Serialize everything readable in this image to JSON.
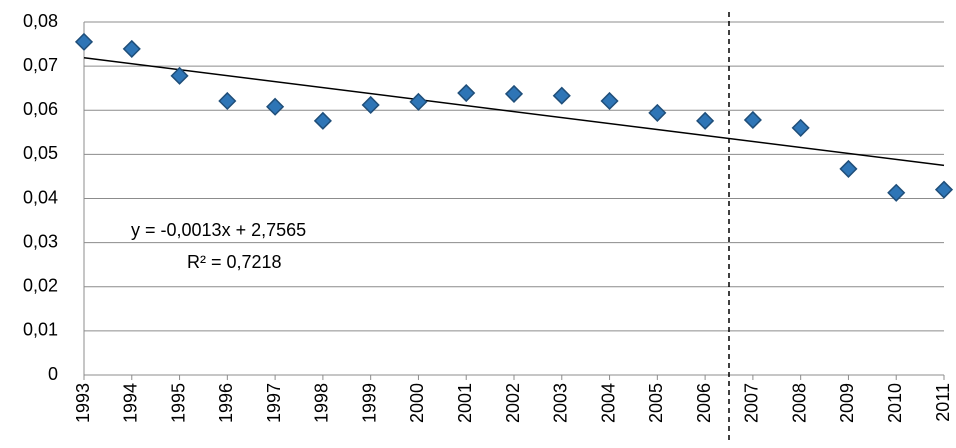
{
  "chart_data": {
    "type": "scatter",
    "x": [
      1993,
      1994,
      1995,
      1996,
      1997,
      1998,
      1999,
      2000,
      2001,
      2002,
      2003,
      2004,
      2005,
      2006,
      2007,
      2008,
      2009,
      2010,
      2011
    ],
    "series": [
      {
        "color": "#2e75b6",
        "values": [
          0.0755,
          0.0739,
          0.0678,
          0.0621,
          0.0608,
          0.0576,
          0.0612,
          0.0619,
          0.0639,
          0.0637,
          0.0633,
          0.0621,
          0.0594,
          0.0576,
          0.0578,
          0.056,
          0.0467,
          0.0413,
          0.042
        ]
      }
    ],
    "trendline": {
      "x": [
        1993,
        2011
      ],
      "values": [
        0.0719,
        0.0475
      ],
      "equation": "y = -0,0013x + 2,7565",
      "r2": "R² = 0,7218"
    },
    "vline_x": 2006.5,
    "xlim": [
      1993,
      2011
    ],
    "xticks": [
      1993,
      1994,
      1995,
      1996,
      1997,
      1998,
      1999,
      2000,
      2001,
      2002,
      2003,
      2004,
      2005,
      2006,
      2007,
      2008,
      2009,
      2010,
      2011
    ],
    "ylim": [
      0,
      0.08
    ],
    "yticks": [
      0,
      {
        "value": 0.01,
        "label": "0,01"
      },
      {
        "value": 0.02,
        "label": "0,02"
      },
      {
        "value": 0.03,
        "label": "0,03"
      },
      {
        "value": 0.04,
        "label": "0,04"
      },
      {
        "value": 0.05,
        "label": "0,05"
      },
      {
        "value": 0.06,
        "label": "0,06"
      },
      {
        "value": 0.07,
        "label": "0,07"
      },
      {
        "value": 0.08,
        "label": "0,08"
      }
    ],
    "grid": true
  }
}
